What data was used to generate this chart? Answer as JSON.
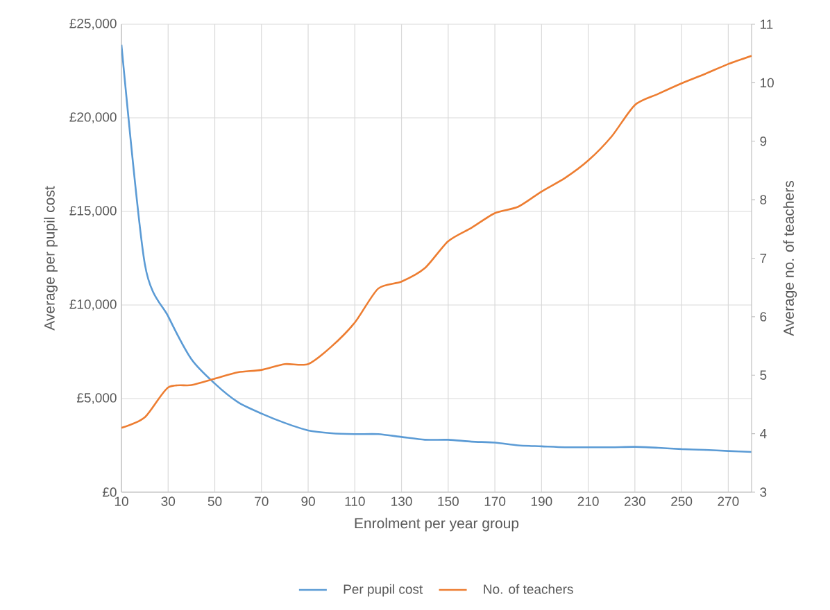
{
  "chart_data": {
    "type": "line",
    "x": [
      10,
      20,
      30,
      40,
      50,
      60,
      70,
      80,
      90,
      100,
      110,
      120,
      130,
      140,
      150,
      160,
      170,
      180,
      190,
      200,
      210,
      220,
      230,
      240,
      250,
      260,
      270,
      280
    ],
    "series": [
      {
        "name": "Per pupil cost",
        "color": "#5b9bd5",
        "values": [
          23900,
          12200,
          9400,
          7100,
          5800,
          4800,
          4200,
          3700,
          3300,
          3150,
          3100,
          3100,
          2950,
          2800,
          2800,
          2700,
          2650,
          2500,
          2450,
          2400,
          2400,
          2400,
          2420,
          2370,
          2300,
          2260,
          2200,
          2150
        ]
      },
      {
        "name": "No. of teachers",
        "color": "#ed7d31",
        "axis": "y2",
        "values": [
          4.1,
          4.28,
          4.79,
          4.83,
          4.94,
          5.05,
          5.09,
          5.19,
          5.19,
          5.49,
          5.9,
          6.48,
          6.6,
          6.83,
          7.29,
          7.52,
          7.77,
          7.88,
          8.14,
          8.37,
          8.67,
          9.08,
          9.62,
          9.81,
          9.99,
          10.15,
          10.32,
          10.46
        ]
      }
    ],
    "xlabel": "Enrolment per year group",
    "ylabel": "Average per pupil cost",
    "y2label": "Average no. of teachers",
    "xlim": [
      10,
      280
    ],
    "xticks": [
      10,
      30,
      50,
      70,
      90,
      110,
      130,
      150,
      170,
      190,
      210,
      230,
      250,
      270
    ],
    "ylim": [
      0,
      25000
    ],
    "yticks": [
      {
        "value": 0,
        "label": "£0"
      },
      {
        "value": 5000,
        "label": "£5,000"
      },
      {
        "value": 10000,
        "label": "£10,000"
      },
      {
        "value": 15000,
        "label": "£15,000"
      },
      {
        "value": 20000,
        "label": "£20,000"
      },
      {
        "value": 25000,
        "label": "£25,000"
      }
    ],
    "y2lim": [
      3,
      11
    ],
    "y2ticks": [
      3,
      4,
      5,
      6,
      7,
      8,
      9,
      10,
      11
    ],
    "grid": true,
    "legend": "bottom",
    "marker": "none",
    "line_style": "solid"
  }
}
